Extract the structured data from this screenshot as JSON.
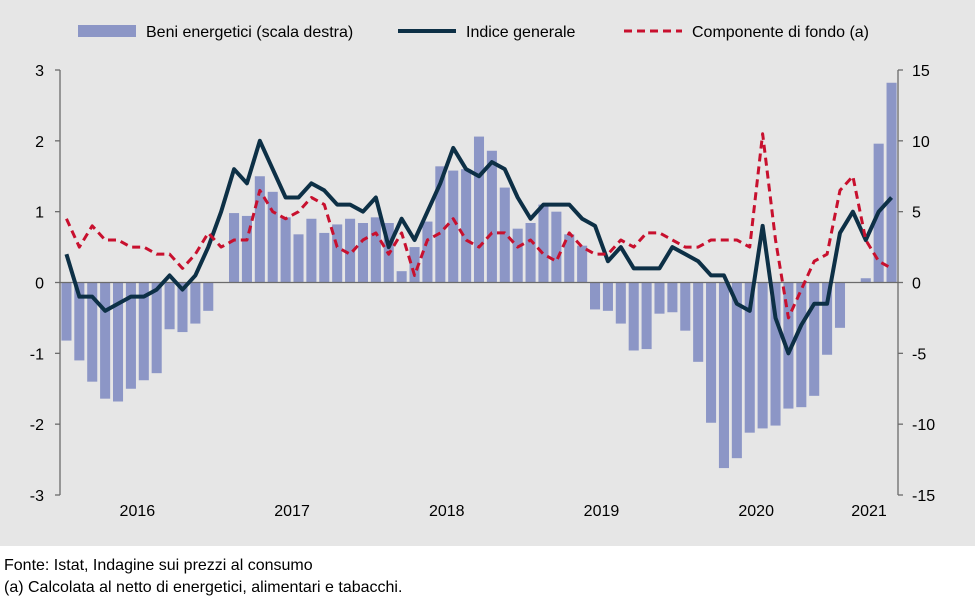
{
  "chart_data": {
    "type": "bar+line",
    "title": "",
    "legend": [
      "Beni energetici (scala destra)",
      "Indice generale",
      "Componente di fondo (a)"
    ],
    "x_labels": [
      "2016",
      "2017",
      "2018",
      "2019",
      "2020",
      "2021"
    ],
    "y_left": {
      "min": -3,
      "max": 3,
      "ticks": [
        "-3",
        "-2",
        "-1",
        "0",
        "1",
        "2",
        "3"
      ]
    },
    "y_right": {
      "min": -15,
      "max": 15,
      "ticks": [
        "-15",
        "-10",
        "-5",
        "0",
        "5",
        "10",
        "15"
      ]
    },
    "start_month": "2016-01",
    "series": [
      {
        "name": "Beni energetici (scala destra)",
        "kind": "bar",
        "axis": "right",
        "color": "#8c96c6",
        "values": [
          -4.1,
          -5.5,
          -7.0,
          -8.2,
          -8.4,
          -7.5,
          -6.9,
          -6.4,
          -3.3,
          -3.5,
          -2.9,
          -2.0,
          0.0,
          4.9,
          4.7,
          7.5,
          6.4,
          4.6,
          3.4,
          4.5,
          3.5,
          4.1,
          4.5,
          4.2,
          4.6,
          4.2,
          0.8,
          2.5,
          4.3,
          8.2,
          7.9,
          8.0,
          10.3,
          9.3,
          6.7,
          3.8,
          4.2,
          5.5,
          5.0,
          3.4,
          2.6,
          -1.9,
          -2.0,
          -2.9,
          -4.8,
          -4.7,
          -2.2,
          -2.1,
          -3.4,
          -5.6,
          -9.9,
          -13.1,
          -12.4,
          -10.6,
          -10.3,
          -10.1,
          -8.9,
          -8.8,
          -8.0,
          -5.1,
          -3.2,
          0.0,
          0.3,
          9.8,
          14.1
        ]
      },
      {
        "name": "Indice generale",
        "kind": "line",
        "axis": "left",
        "color": "#0d3046",
        "dash": "solid",
        "values": [
          0.4,
          -0.2,
          -0.2,
          -0.4,
          -0.3,
          -0.2,
          -0.2,
          -0.1,
          0.1,
          -0.1,
          0.1,
          0.5,
          1.0,
          1.6,
          1.4,
          2.0,
          1.6,
          1.2,
          1.2,
          1.4,
          1.3,
          1.1,
          1.1,
          1.0,
          1.2,
          0.5,
          0.9,
          0.6,
          1.0,
          1.4,
          1.9,
          1.6,
          1.5,
          1.7,
          1.6,
          1.2,
          0.9,
          1.1,
          1.1,
          1.1,
          0.9,
          0.8,
          0.3,
          0.5,
          0.2,
          0.2,
          0.2,
          0.5,
          0.4,
          0.3,
          0.1,
          0.1,
          -0.3,
          -0.4,
          0.8,
          -0.5,
          -1.0,
          -0.6,
          -0.3,
          -0.3,
          0.7,
          1.0,
          0.6,
          1.0,
          1.2
        ]
      },
      {
        "name": "Componente di fondo (a)",
        "kind": "line",
        "axis": "left",
        "color": "#c8102e",
        "dash": "dashed",
        "values": [
          0.9,
          0.5,
          0.8,
          0.6,
          0.6,
          0.5,
          0.5,
          0.4,
          0.4,
          0.2,
          0.4,
          0.7,
          0.5,
          0.6,
          0.6,
          1.3,
          1.0,
          0.9,
          1.0,
          1.2,
          1.1,
          0.5,
          0.4,
          0.6,
          0.7,
          0.4,
          0.7,
          0.1,
          0.6,
          0.7,
          0.9,
          0.6,
          0.5,
          0.7,
          0.7,
          0.5,
          0.6,
          0.4,
          0.3,
          0.7,
          0.5,
          0.4,
          0.4,
          0.6,
          0.5,
          0.7,
          0.7,
          0.6,
          0.5,
          0.5,
          0.6,
          0.6,
          0.6,
          0.5,
          2.1,
          0.6,
          -0.5,
          -0.1,
          0.3,
          0.4,
          1.3,
          1.5,
          0.6,
          0.3,
          0.2
        ]
      }
    ]
  },
  "footnotes": {
    "source": "Fonte: Istat, Indagine sui prezzi al consumo",
    "note": "(a) Calcolata al netto di energetici, alimentari e tabacchi."
  }
}
